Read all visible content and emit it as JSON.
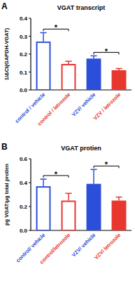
{
  "chart_data": [
    {
      "type": "bar",
      "panel_label": "A",
      "title": "VGAT transcript",
      "y_label": "1/ΔCt(GAPDH-VGAT)",
      "categories": [
        "control / vehicle",
        "control / letrozole",
        "VZV/ vehicle",
        "VZV / letrozole"
      ],
      "values": [
        0.27,
        0.145,
        0.175,
        0.11
      ],
      "errors": [
        0.05,
        0.015,
        0.015,
        0.01
      ],
      "colors": [
        "#2b4fd9",
        "#e8372f",
        "#2b4fd9",
        "#e8372f"
      ],
      "ylim": [
        0,
        0.4
      ],
      "yticks": [
        {
          "value": 0,
          "label": "0.0"
        },
        0.1,
        0.2,
        0.3,
        0.4
      ],
      "annotations": [
        "*",
        "*"
      ]
    },
    {
      "type": "bar",
      "panel_label": "B",
      "title": "VGAT protien",
      "y_label": "pg VGAT/μg total protien",
      "categories": [
        "control/ vehicle",
        "control/letrozole",
        "VZV/ vehicle",
        "VZV/ letrozole"
      ],
      "values": [
        0.37,
        0.25,
        0.39,
        0.25
      ],
      "errors": [
        0.06,
        0.06,
        0.12,
        0.03
      ],
      "colors": [
        "#2b4fd9",
        "#e8372f",
        "#2b4fd9",
        "#e8372f"
      ],
      "ylim": [
        0,
        0.6
      ],
      "yticks": [
        {
          "value": 0,
          "label": "0.0"
        },
        0.2,
        0.4,
        0.6
      ],
      "annotations": [
        "*",
        "*"
      ]
    }
  ]
}
